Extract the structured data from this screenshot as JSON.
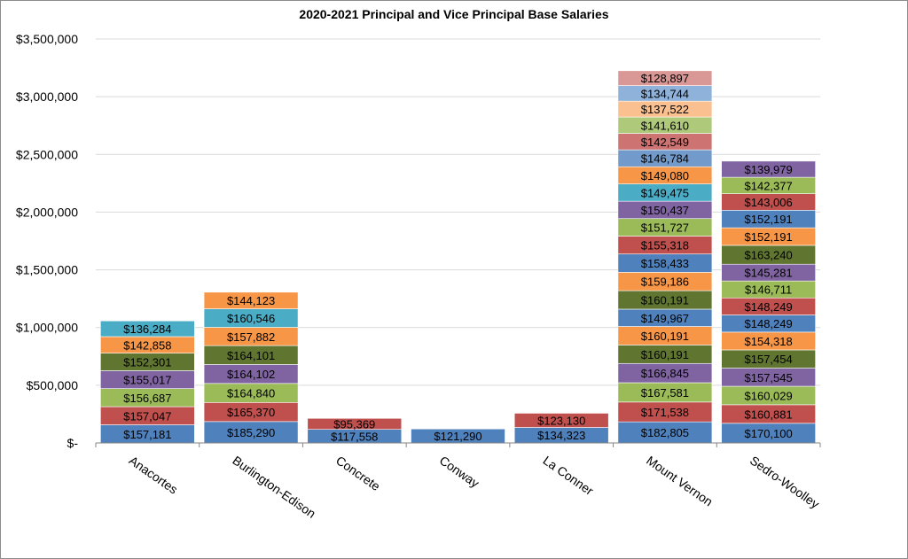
{
  "chart_data": {
    "type": "bar",
    "stacked": true,
    "title": "2020-2021 Principal and Vice Principal Base Salaries",
    "xlabel": "",
    "ylabel": "",
    "ylim": [
      0,
      3500000
    ],
    "ytick_values": [
      0,
      500000,
      1000000,
      1500000,
      2000000,
      2500000,
      3000000,
      3500000
    ],
    "ytick_labels": [
      "$-",
      "$500,000",
      "$1,000,000",
      "$1,500,000",
      "$2,000,000",
      "$2,500,000",
      "$3,000,000",
      "$3,500,000"
    ],
    "grid": true,
    "legend": "none",
    "categories": [
      "Anacortes",
      "Burlington-Edison",
      "Concrete",
      "Conway",
      "La Conner",
      "Mount Vernon",
      "Sedro-Woolley"
    ],
    "palette": [
      "#4f81bd",
      "#c0504d",
      "#9bbb59",
      "#8064a2",
      "#4bacc6",
      "#f79646",
      "#2c4d75",
      "#772c2a",
      "#5f7530",
      "#4d3b62",
      "#276a7c",
      "#b65708",
      "#729aca",
      "#cd7371",
      "#afc97a",
      "#fac090"
    ],
    "shade_factor": 0.85,
    "stacks": [
      [
        157181,
        157047,
        156687,
        155017,
        152301,
        142858,
        136284
      ],
      [
        185290,
        165370,
        164840,
        164102,
        164101,
        157882,
        160546,
        144123
      ],
      [
        117558,
        95369
      ],
      [
        121290
      ],
      [
        134323,
        123130
      ],
      [
        182805,
        171538,
        167581,
        166845,
        160191,
        160191,
        149967,
        160191,
        159186,
        158433,
        155318,
        151727,
        150437,
        149475,
        149080,
        146784,
        142549,
        141610,
        137522,
        134744,
        128897
      ],
      [
        170100,
        160881,
        160029,
        157545,
        157454,
        154318,
        148249,
        148249,
        146711,
        145281,
        163240,
        152191,
        152191,
        143006,
        142377,
        139979
      ]
    ],
    "stack_colors": [
      [
        0,
        1,
        2,
        3,
        8,
        5,
        4
      ],
      [
        0,
        1,
        2,
        3,
        8,
        5,
        4,
        5
      ],
      [
        0,
        1
      ],
      [
        0
      ],
      [
        0,
        1
      ],
      [
        0,
        1,
        2,
        3,
        8,
        5,
        0,
        8,
        5,
        0,
        1,
        2,
        3,
        4,
        5,
        12,
        13,
        14,
        15,
        16,
        17
      ],
      [
        0,
        1,
        2,
        3,
        8,
        5,
        0,
        1,
        2,
        3,
        8,
        5,
        0,
        1,
        2,
        3
      ]
    ],
    "extra_palette": [
      "#8fb2da",
      "#d99796",
      "#c3d69b",
      "#b3a2c7",
      "#93cddd",
      "#fab98a"
    ]
  }
}
